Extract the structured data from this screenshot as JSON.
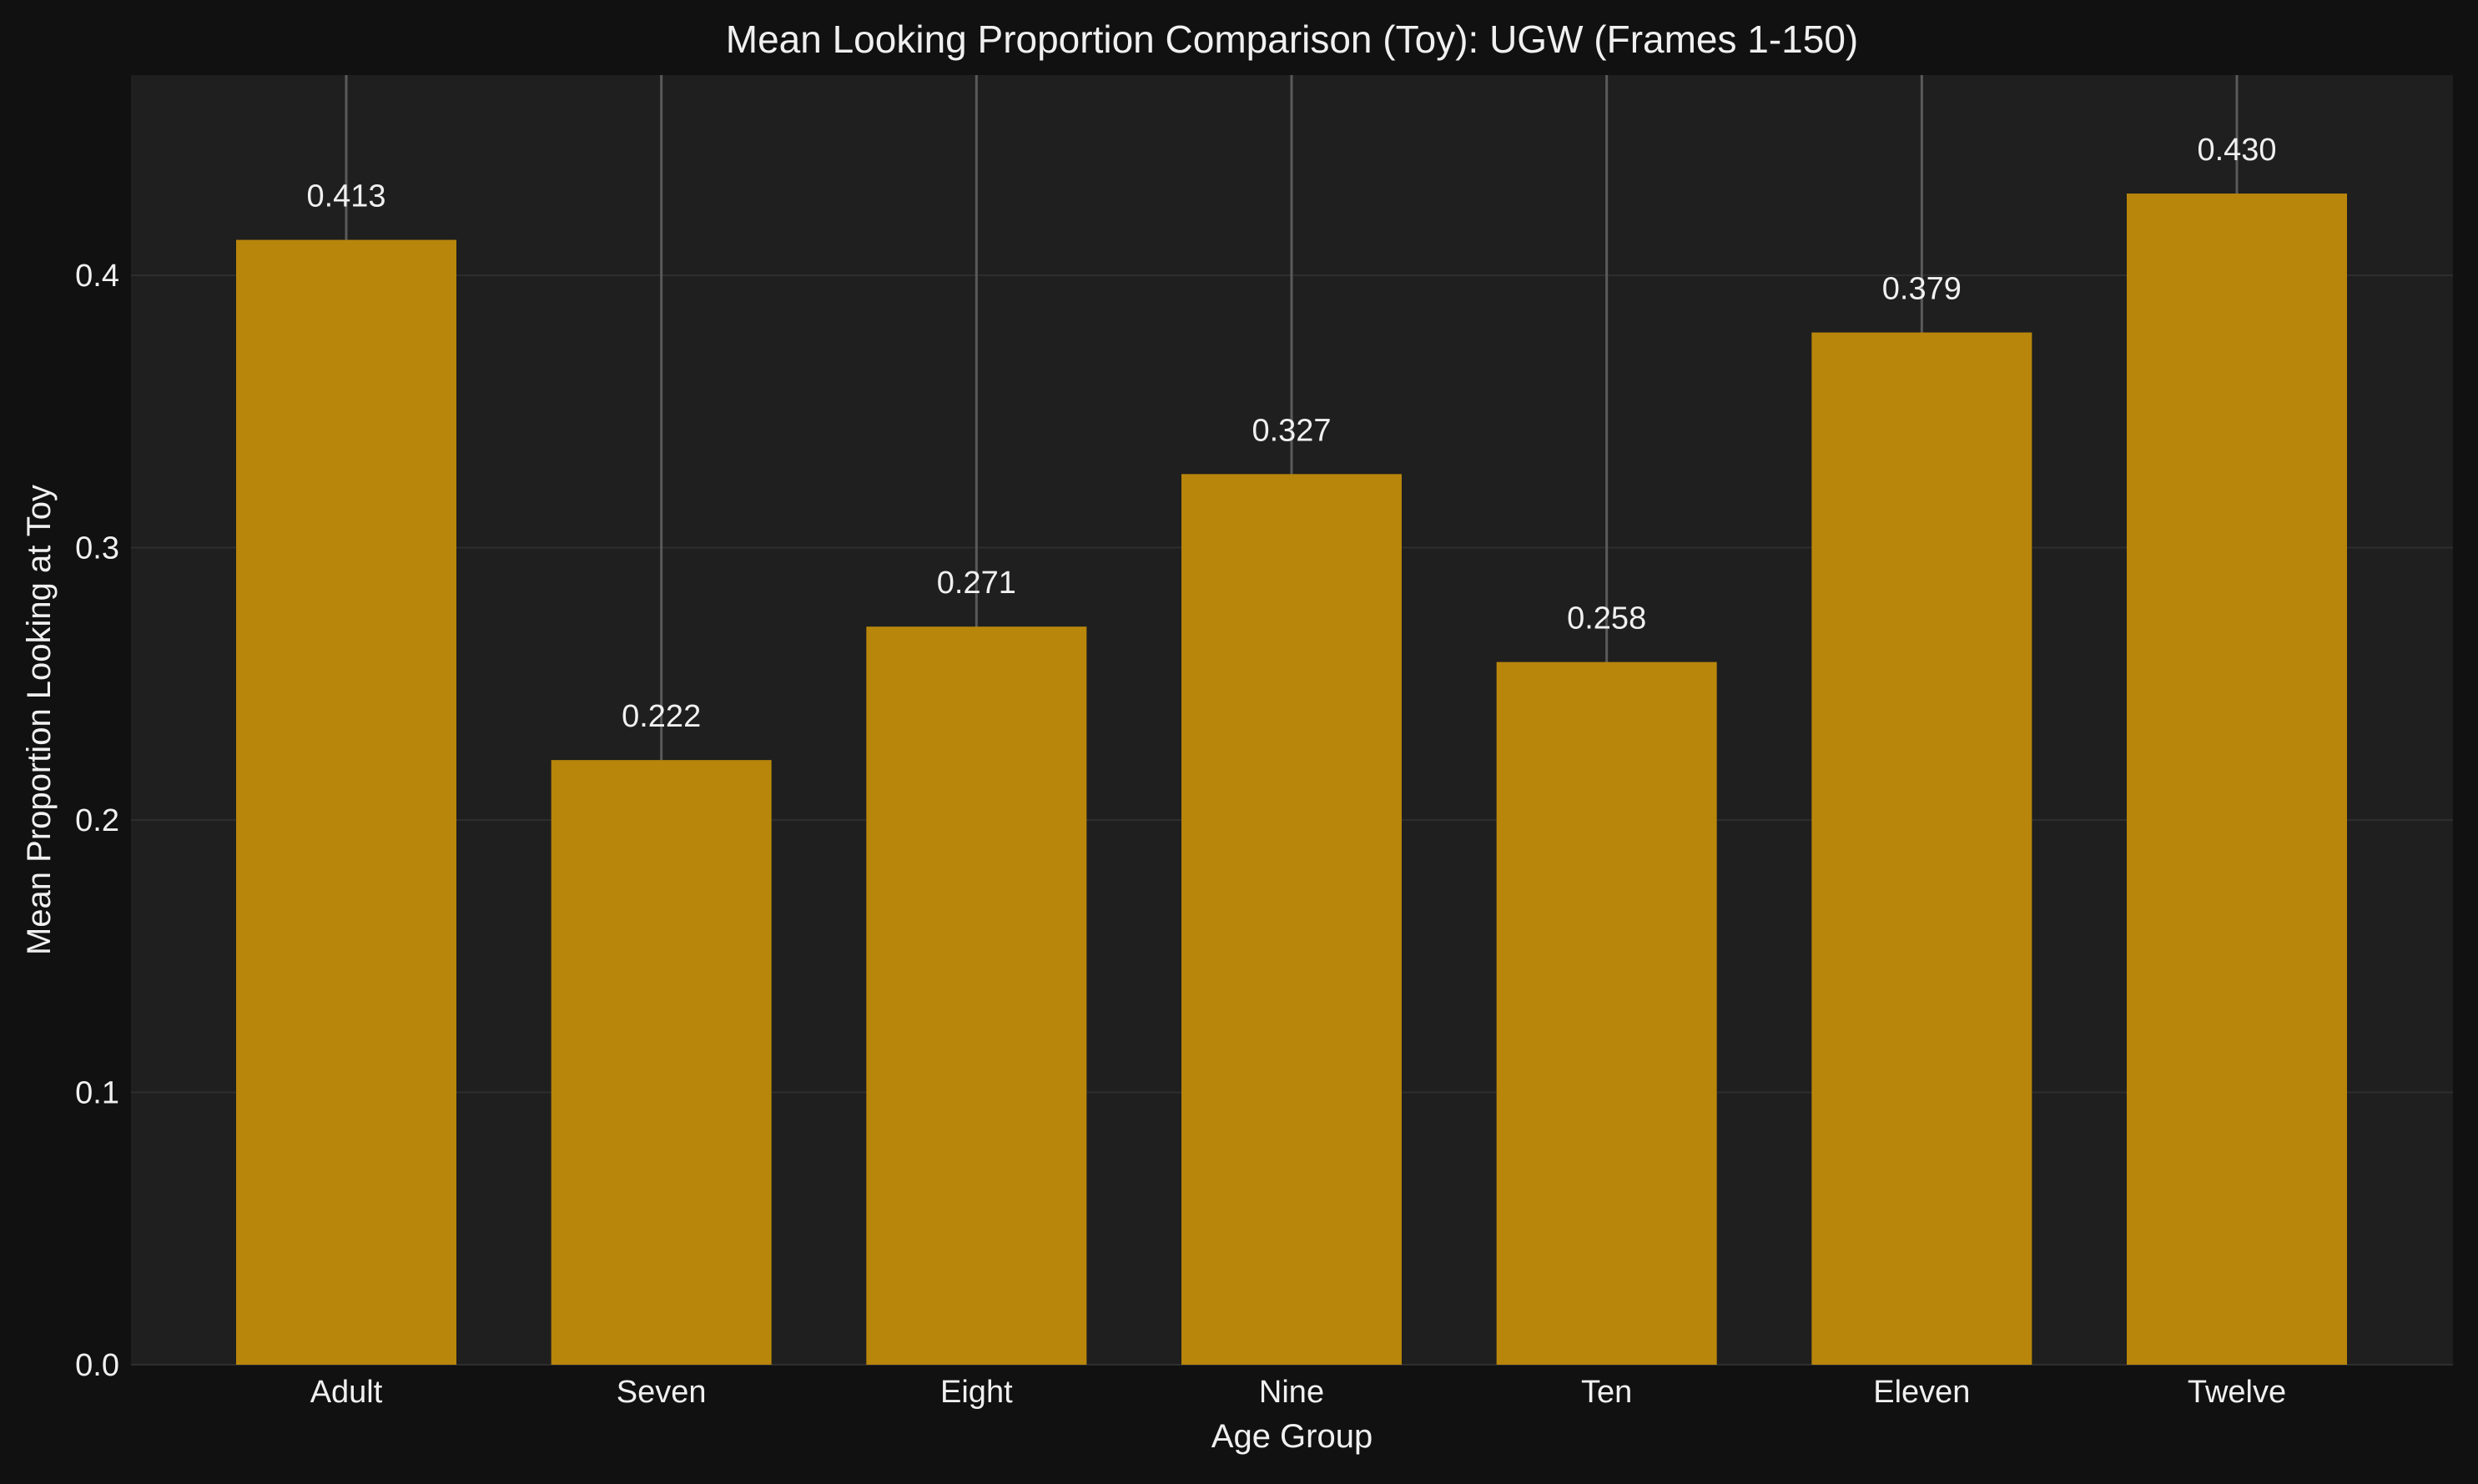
{
  "chart_data": {
    "type": "bar",
    "title": "Mean Looking Proportion Comparison (Toy): UGW (Frames 1-150)",
    "xlabel": "Age Group",
    "ylabel": "Mean Proportion Looking at Toy",
    "categories": [
      "Adult",
      "Seven",
      "Eight",
      "Nine",
      "Ten",
      "Eleven",
      "Twelve"
    ],
    "values": [
      0.413,
      0.222,
      0.271,
      0.327,
      0.258,
      0.379,
      0.43
    ],
    "value_labels": [
      "0.413",
      "0.222",
      "0.271",
      "0.327",
      "0.258",
      "0.379",
      "0.430"
    ],
    "yticks": [
      0.0,
      0.1,
      0.2,
      0.3,
      0.4
    ],
    "ytick_labels": [
      "0.0",
      "0.1",
      "0.2",
      "0.3",
      "0.4"
    ],
    "ylim": [
      0,
      0.4735
    ],
    "grid": true,
    "colors": {
      "background": "#111111",
      "plot_background": "#1f1f1f",
      "bar": "#b8860b",
      "grid": "#2e2e2e",
      "error_line": "#5a5a5a",
      "text": "#f0f0f0"
    }
  }
}
